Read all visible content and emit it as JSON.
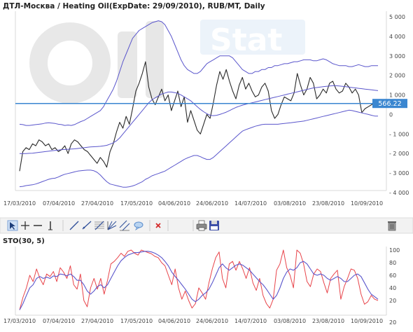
{
  "title": "ДТЛ-Москва / Heating Oil(ExpDate: 29/09/2010), RUB/MT, Daily",
  "watermark_text": "Stat",
  "colors": {
    "price": "#2a2a2a",
    "band": "#5a56cc",
    "level_line": "#3a86d0",
    "level_tag_bg": "#3a86d0",
    "sto_k": "#e8444a",
    "sto_d": "#5a56cc",
    "toolbar_bg": "#f2f2f2"
  },
  "toolbar": {
    "tools": [
      {
        "name": "cursor-tool-icon",
        "icon": "arrow-cursor"
      },
      {
        "name": "crosshair-tool-icon",
        "icon": "crosshair"
      },
      {
        "name": "horizontal-line-tool-icon",
        "icon": "horizontal-line"
      },
      {
        "name": "vertical-line-tool-icon",
        "icon": "vertical-line"
      },
      {
        "name": "trend-line-tool-icon",
        "icon": "trend-line"
      },
      {
        "name": "ray-tool-icon",
        "icon": "ray"
      },
      {
        "name": "fibonacci-fan-tool-icon",
        "icon": "fibonacci-fan"
      },
      {
        "name": "gann-fan-tool-icon",
        "icon": "gann-fan"
      },
      {
        "name": "channel-tool-icon",
        "icon": "channel"
      },
      {
        "name": "comment-tool-icon",
        "icon": "speech-bubble"
      },
      {
        "name": "delete-tool-icon",
        "icon": "red-x"
      },
      {
        "name": "print-icon",
        "icon": "printer"
      },
      {
        "name": "save-icon",
        "icon": "floppy-disk"
      },
      {
        "name": "trash-icon",
        "icon": "trash-can"
      }
    ]
  },
  "chart_data": [
    {
      "type": "line",
      "title": "ДТЛ-Москва / Heating Oil(ExpDate: 29/09/2010), RUB/MT, Daily",
      "x_labels": [
        "17/03/2010",
        "07/04/2010",
        "27/04/2010",
        "17/05/2010",
        "04/06/2010",
        "24/06/2010",
        "14/07/2010",
        "03/08/2010",
        "23/08/2010",
        "10/09/2010"
      ],
      "y_tick_labels": [
        "5 000",
        "4 000",
        "3 000",
        "2 000",
        "1 000",
        "0",
        "- 1 000",
        "- 2 000",
        "- 3 000",
        "- 4 000"
      ],
      "ylim": [
        -4000,
        5000
      ],
      "grid": false,
      "level_line": {
        "value": 566.22,
        "label": "566.22"
      },
      "series": [
        {
          "key": "price",
          "values": [
            -2900,
            -1900,
            -1700,
            -1800,
            -1500,
            -1600,
            -1300,
            -1400,
            -1600,
            -1500,
            -1800,
            -1700,
            -1900,
            -1800,
            -1600,
            -2000,
            -1500,
            -1300,
            -1400,
            -1600,
            -1800,
            -1900,
            -2100,
            -2300,
            -2500,
            -2200,
            -2400,
            -2700,
            -1900,
            -1500,
            -900,
            -400,
            -700,
            -100,
            -500,
            300,
            1200,
            1600,
            2100,
            2700,
            1400,
            800,
            500,
            900,
            1300,
            700,
            1000,
            200,
            700,
            1200,
            400,
            900,
            -400,
            200,
            -300,
            -800,
            -1000,
            -500,
            0,
            -200,
            600,
            1500,
            2200,
            1800,
            2300,
            1700,
            1200,
            800,
            1500,
            1900,
            1300,
            1600,
            1200,
            900,
            1000,
            1400,
            1600,
            1200,
            200,
            -200,
            0,
            500,
            900,
            800,
            700,
            1100,
            2100,
            1500,
            1000,
            1300,
            1900,
            1600,
            800,
            1000,
            1300,
            1100,
            1600,
            1700,
            1300,
            1100,
            1200,
            1600,
            1400,
            1100,
            1300,
            1000,
            100,
            300,
            400,
            500,
            600,
            566
          ]
        },
        {
          "key": "upper_band",
          "values": [
            -500,
            -520,
            -560,
            -560,
            -540,
            -520,
            -500,
            -480,
            -440,
            -420,
            -440,
            -460,
            -500,
            -520,
            -560,
            -540,
            -560,
            -520,
            -440,
            -360,
            -300,
            -200,
            -100,
            0,
            100,
            200,
            400,
            700,
            1000,
            1300,
            1700,
            2200,
            2700,
            3100,
            3500,
            3900,
            4100,
            4300,
            4400,
            4500,
            4600,
            4700,
            4750,
            4800,
            4750,
            4600,
            4300,
            4000,
            3600,
            3200,
            2800,
            2500,
            2300,
            2200,
            2100,
            2100,
            2200,
            2400,
            2600,
            2700,
            2800,
            2900,
            3000,
            3000,
            3000,
            3000,
            2900,
            2700,
            2500,
            2300,
            2200,
            2100,
            2100,
            2200,
            2200,
            2300,
            2300,
            2400,
            2400,
            2500,
            2500,
            2550,
            2600,
            2600,
            2650,
            2700,
            2700,
            2750,
            2800,
            2800,
            2800,
            2750,
            2750,
            2800,
            2850,
            2800,
            2700,
            2600,
            2550,
            2500,
            2500,
            2500,
            2450,
            2450,
            2500,
            2550,
            2500,
            2450,
            2450,
            2500,
            2500,
            2500
          ]
        },
        {
          "key": "middle_band",
          "values": [
            -2000,
            -2000,
            -2000,
            -1990,
            -1980,
            -1960,
            -1940,
            -1920,
            -1900,
            -1880,
            -1860,
            -1840,
            -1820,
            -1800,
            -1790,
            -1780,
            -1770,
            -1760,
            -1740,
            -1720,
            -1700,
            -1680,
            -1660,
            -1650,
            -1640,
            -1630,
            -1610,
            -1580,
            -1520,
            -1450,
            -1350,
            -1200,
            -1000,
            -800,
            -600,
            -400,
            -200,
            0,
            200,
            400,
            600,
            750,
            850,
            950,
            1050,
            1100,
            1150,
            1150,
            1120,
            1080,
            1000,
            900,
            800,
            700,
            550,
            400,
            260,
            140,
            40,
            -40,
            -60,
            -40,
            0,
            60,
            120,
            200,
            280,
            360,
            420,
            480,
            520,
            560,
            600,
            640,
            680,
            720,
            760,
            800,
            840,
            880,
            920,
            960,
            1000,
            1040,
            1080,
            1120,
            1160,
            1200,
            1240,
            1280,
            1320,
            1360,
            1380,
            1400,
            1420,
            1440,
            1460,
            1470,
            1470,
            1460,
            1440,
            1420,
            1400,
            1380,
            1360,
            1340,
            1320,
            1300,
            1280,
            1260,
            1240,
            1220
          ]
        },
        {
          "key": "lower_band",
          "values": [
            -3700,
            -3680,
            -3640,
            -3620,
            -3600,
            -3560,
            -3500,
            -3440,
            -3380,
            -3320,
            -3280,
            -3260,
            -3200,
            -3120,
            -3060,
            -3020,
            -2980,
            -2940,
            -2900,
            -2880,
            -2860,
            -2850,
            -2850,
            -2880,
            -2960,
            -3100,
            -3280,
            -3440,
            -3560,
            -3600,
            -3640,
            -3680,
            -3720,
            -3720,
            -3700,
            -3660,
            -3600,
            -3520,
            -3440,
            -3320,
            -3240,
            -3140,
            -3080,
            -3020,
            -2960,
            -2900,
            -2800,
            -2700,
            -2600,
            -2500,
            -2400,
            -2300,
            -2220,
            -2160,
            -2100,
            -2100,
            -2160,
            -2240,
            -2300,
            -2300,
            -2200,
            -2050,
            -1900,
            -1750,
            -1600,
            -1450,
            -1300,
            -1150,
            -1000,
            -850,
            -780,
            -720,
            -660,
            -600,
            -560,
            -520,
            -500,
            -500,
            -500,
            -500,
            -500,
            -480,
            -460,
            -440,
            -420,
            -400,
            -380,
            -360,
            -340,
            -300,
            -260,
            -220,
            -180,
            -140,
            -100,
            -60,
            -20,
            20,
            60,
            100,
            140,
            180,
            220,
            200,
            160,
            120,
            80,
            40,
            0,
            -40,
            -80,
            -80
          ]
        }
      ]
    },
    {
      "type": "line",
      "title": "STO(30, 5)",
      "x_labels": [
        "17/03/2010",
        "07/04/2010",
        "27/04/2010",
        "17/05/2010",
        "04/06/2010",
        "24/06/2010",
        "14/07/2010",
        "03/08/2010",
        "23/08/2010",
        "10/09/2010"
      ],
      "y_tick_labels": [
        "100",
        "80",
        "60",
        "40",
        "20",
        "20"
      ],
      "ylim": [
        0,
        100
      ],
      "series": [
        {
          "key": "sto_k",
          "values": [
            5,
            25,
            40,
            60,
            50,
            70,
            55,
            45,
            62,
            58,
            66,
            50,
            72,
            65,
            55,
            75,
            45,
            38,
            62,
            20,
            10,
            40,
            55,
            38,
            55,
            30,
            52,
            78,
            82,
            88,
            95,
            90,
            98,
            100,
            95,
            92,
            100,
            98,
            96,
            94,
            90,
            88,
            80,
            75,
            60,
            45,
            70,
            40,
            22,
            35,
            20,
            8,
            15,
            40,
            32,
            22,
            48,
            70,
            88,
            97,
            55,
            40,
            78,
            82,
            68,
            82,
            70,
            55,
            72,
            48,
            36,
            55,
            28,
            15,
            8,
            22,
            68,
            78,
            100,
            72,
            60,
            40,
            100,
            95,
            78,
            50,
            42,
            62,
            70,
            66,
            48,
            32,
            55,
            62,
            68,
            22,
            42,
            55,
            70,
            68,
            55,
            30,
            14,
            18,
            28,
            22,
            20
          ]
        },
        {
          "key": "sto_d",
          "values": [
            5,
            15,
            28,
            40,
            45,
            55,
            58,
            55,
            57,
            55,
            59,
            58,
            62,
            61,
            59,
            62,
            58,
            52,
            52,
            45,
            35,
            30,
            35,
            42,
            45,
            40,
            45,
            55,
            65,
            75,
            83,
            88,
            92,
            94,
            96,
            96,
            97,
            98,
            98,
            97,
            95,
            92,
            88,
            82,
            75,
            65,
            58,
            52,
            45,
            38,
            30,
            22,
            18,
            22,
            28,
            32,
            38,
            48,
            60,
            72,
            78,
            72,
            68,
            72,
            76,
            78,
            76,
            72,
            68,
            62,
            56,
            50,
            45,
            38,
            30,
            22,
            28,
            40,
            55,
            65,
            70,
            68,
            72,
            80,
            82,
            78,
            70,
            62,
            60,
            62,
            60,
            55,
            52,
            55,
            58,
            55,
            50,
            50,
            55,
            60,
            62,
            58,
            48,
            38,
            30,
            26,
            22
          ]
        }
      ]
    }
  ]
}
